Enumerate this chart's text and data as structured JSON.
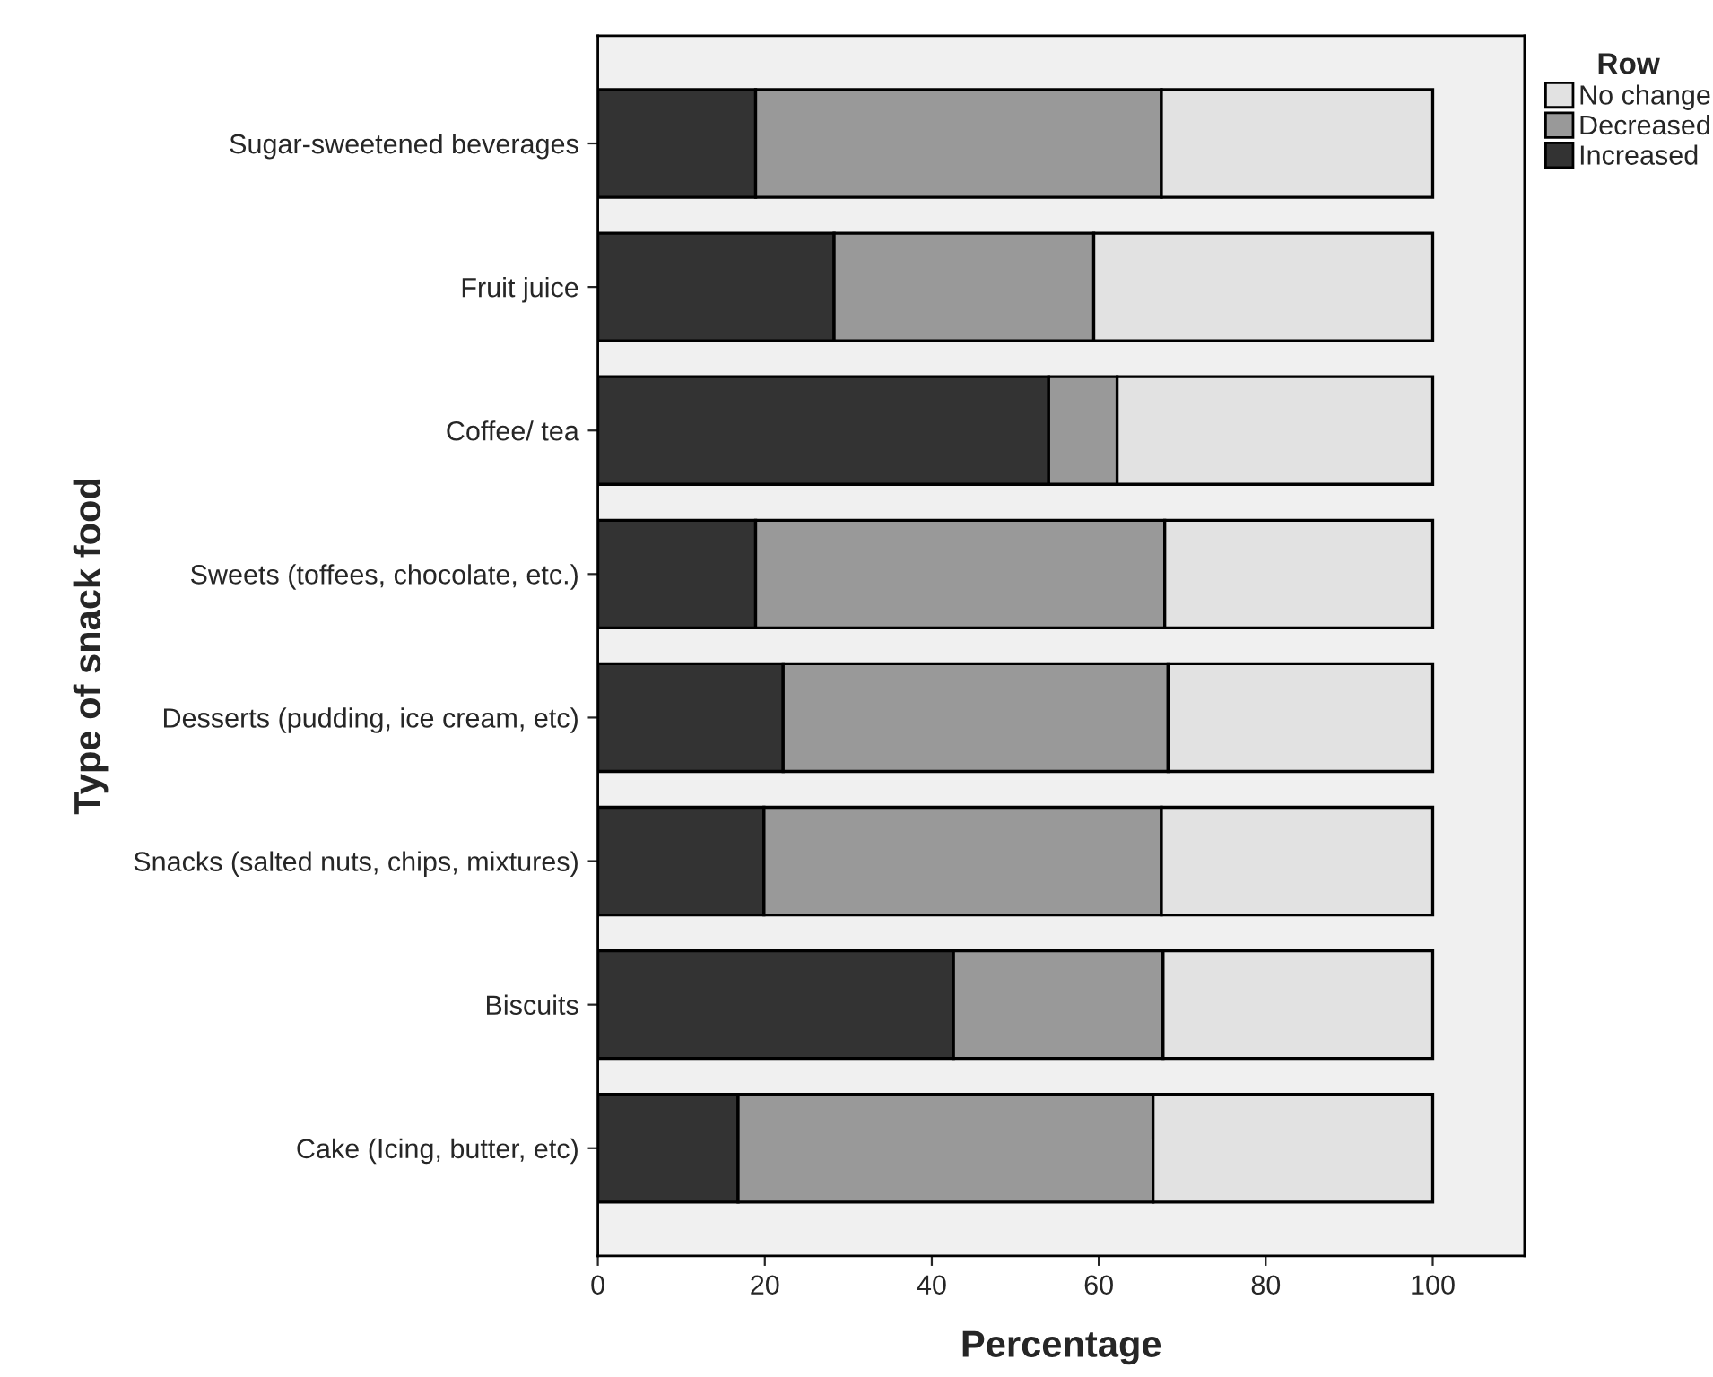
{
  "chart_data": {
    "type": "bar",
    "orientation": "horizontal",
    "stacked": true,
    "xlabel": "Percentage",
    "ylabel": "Type of snack food",
    "legend_title": "Row",
    "legend": "top right",
    "grid": false,
    "categories": [
      "Sugar-sweetened beverages",
      "Fruit juice",
      "Coffee/ tea",
      "Sweets (toffees, chocolate, etc.)",
      "Desserts (pudding, ice cream, etc)",
      "Snacks (salted nuts, chips, mixtures)",
      "Biscuits",
      "Cake (Icing, butter, etc)"
    ],
    "series": [
      {
        "name": "Increased",
        "color": "#333333",
        "values": [
          18.9,
          28.3,
          54.0,
          18.9,
          22.2,
          19.9,
          42.6,
          16.8
        ]
      },
      {
        "name": "Decreased",
        "color": "#999999",
        "values": [
          48.6,
          31.1,
          8.2,
          49.0,
          46.1,
          47.6,
          25.1,
          49.7
        ]
      },
      {
        "name": "No change",
        "color": "#e2e2e2",
        "values": [
          32.5,
          40.6,
          37.8,
          32.1,
          31.7,
          32.5,
          32.3,
          33.5
        ]
      }
    ],
    "xlim": [
      0,
      111
    ],
    "xticks": [
      0,
      20,
      40,
      60,
      80,
      100
    ]
  }
}
